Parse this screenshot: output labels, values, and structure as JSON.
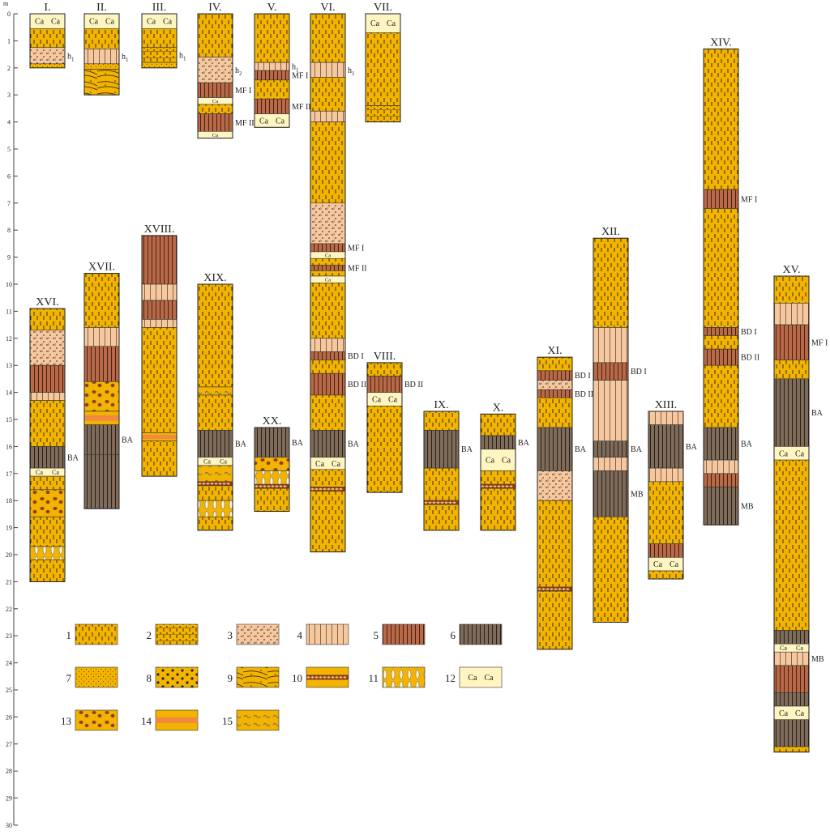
{
  "colors": {
    "loess_yellow": "#F2B400",
    "light_soil": "#F5C8A0",
    "brown_soil": "#B86A48",
    "dark_soil": "#7E6B5A",
    "carbonate_fill": "#FFF5C0",
    "orange_band": "#F08A40",
    "line": "#333333"
  },
  "axis": {
    "unit": "m",
    "ticks": [
      "0",
      "1",
      "2",
      "3",
      "4",
      "5",
      "6",
      "7",
      "8",
      "9",
      "10",
      "11",
      "12",
      "13",
      "14",
      "15",
      "16",
      "17",
      "18",
      "19",
      "20",
      "21",
      "22",
      "23",
      "24",
      "25",
      "26",
      "27",
      "28",
      "29",
      "30"
    ]
  },
  "profiles": [
    {
      "id": "I.",
      "top": 0,
      "bottom": 2.0,
      "layers": [
        {
          "top": 0,
          "bottom": 0.55,
          "type": 12
        },
        {
          "top": 0.55,
          "bottom": 1.25,
          "type": 1
        },
        {
          "top": 1.25,
          "bottom": 1.85,
          "type": 3,
          "label": "h1"
        },
        {
          "top": 1.85,
          "bottom": 2.0,
          "type": 7
        }
      ]
    },
    {
      "id": "II.",
      "top": 0,
      "bottom": 3.0,
      "layers": [
        {
          "top": 0,
          "bottom": 0.55,
          "type": 12
        },
        {
          "top": 0.55,
          "bottom": 1.3,
          "type": 1
        },
        {
          "top": 1.3,
          "bottom": 1.85,
          "type": 4,
          "label": "h1"
        },
        {
          "top": 1.85,
          "bottom": 2.05,
          "type": 7
        },
        {
          "top": 2.05,
          "bottom": 3.0,
          "type": 9
        }
      ]
    },
    {
      "id": "III.",
      "top": 0,
      "bottom": 2.0,
      "layers": [
        {
          "top": 0,
          "bottom": 0.55,
          "type": 12
        },
        {
          "top": 0.55,
          "bottom": 1.25,
          "type": 1
        },
        {
          "top": 1.25,
          "bottom": 1.8,
          "type": 2,
          "label": "h1"
        },
        {
          "top": 1.8,
          "bottom": 2.0,
          "type": 7
        }
      ]
    },
    {
      "id": "IV.",
      "top": 0,
      "bottom": 4.6,
      "layers": [
        {
          "top": 0,
          "bottom": 1.6,
          "type": 1
        },
        {
          "top": 1.6,
          "bottom": 2.55,
          "type": 3,
          "label": "h2"
        },
        {
          "top": 2.55,
          "bottom": 3.1,
          "type": 5,
          "label": "MF I"
        },
        {
          "top": 3.1,
          "bottom": 3.35,
          "type": 12
        },
        {
          "top": 3.35,
          "bottom": 3.7,
          "type": 1
        },
        {
          "top": 3.7,
          "bottom": 4.35,
          "type": 5,
          "label": "MF II"
        },
        {
          "top": 4.35,
          "bottom": 4.6,
          "type": 12
        }
      ]
    },
    {
      "id": "V.",
      "top": 0,
      "bottom": 4.2,
      "layers": [
        {
          "top": 0,
          "bottom": 1.8,
          "type": 1
        },
        {
          "top": 1.8,
          "bottom": 2.1,
          "type": 4,
          "label": "h1"
        },
        {
          "top": 2.1,
          "bottom": 2.45,
          "type": 5,
          "label": "MF I"
        },
        {
          "top": 2.45,
          "bottom": 3.15,
          "type": 1
        },
        {
          "top": 3.15,
          "bottom": 3.7,
          "type": 5,
          "label": "MF II"
        },
        {
          "top": 3.7,
          "bottom": 4.2,
          "type": 12
        }
      ]
    },
    {
      "id": "VI.",
      "top": 0,
      "bottom": 19.9,
      "layers": [
        {
          "top": 0,
          "bottom": 1.8,
          "type": 1
        },
        {
          "top": 1.8,
          "bottom": 2.35,
          "type": 4,
          "label": "h1"
        },
        {
          "top": 2.35,
          "bottom": 3.6,
          "type": 1
        },
        {
          "top": 3.6,
          "bottom": 4.0,
          "type": 4
        },
        {
          "top": 4.0,
          "bottom": 7.0,
          "type": 1
        },
        {
          "top": 7.0,
          "bottom": 8.5,
          "type": 3
        },
        {
          "top": 8.5,
          "bottom": 8.8,
          "type": 5,
          "label": "MF I"
        },
        {
          "top": 8.8,
          "bottom": 9.05,
          "type": 12
        },
        {
          "top": 9.05,
          "bottom": 9.3,
          "type": 1
        },
        {
          "top": 9.3,
          "bottom": 9.5,
          "type": 5,
          "label": "MF II"
        },
        {
          "top": 9.5,
          "bottom": 9.7,
          "type": 1
        },
        {
          "top": 9.7,
          "bottom": 9.95,
          "type": 12
        },
        {
          "top": 9.95,
          "bottom": 12.0,
          "type": 1
        },
        {
          "top": 12.0,
          "bottom": 12.5,
          "type": 4
        },
        {
          "top": 12.5,
          "bottom": 12.8,
          "type": 5,
          "label": "BD I"
        },
        {
          "top": 12.8,
          "bottom": 13.3,
          "type": 1
        },
        {
          "top": 13.3,
          "bottom": 14.1,
          "type": 5,
          "label": "BD II"
        },
        {
          "top": 14.1,
          "bottom": 15.4,
          "type": 1
        },
        {
          "top": 15.4,
          "bottom": 16.4,
          "type": 6,
          "label": "BA"
        },
        {
          "top": 16.4,
          "bottom": 16.85,
          "type": 12
        },
        {
          "top": 16.85,
          "bottom": 17.5,
          "type": 1
        },
        {
          "top": 17.5,
          "bottom": 17.65,
          "type": 10
        },
        {
          "top": 17.65,
          "bottom": 19.9,
          "type": 1
        }
      ]
    },
    {
      "id": "VII.",
      "top": 0,
      "bottom": 4.0,
      "layers": [
        {
          "top": 0,
          "bottom": 0.7,
          "type": 12
        },
        {
          "top": 0.7,
          "bottom": 3.4,
          "type": 1
        },
        {
          "top": 3.4,
          "bottom": 4.0,
          "type": 2
        }
      ]
    },
    {
      "id": "VIII.",
      "top": 12.9,
      "bottom": 17.7,
      "layers": [
        {
          "top": 12.9,
          "bottom": 13.4,
          "type": 1
        },
        {
          "top": 13.4,
          "bottom": 14.0,
          "type": 5,
          "label": "BD II"
        },
        {
          "top": 14.0,
          "bottom": 14.5,
          "type": 12
        },
        {
          "top": 14.5,
          "bottom": 17.7,
          "type": 1
        }
      ]
    },
    {
      "id": "IX.",
      "top": 14.7,
      "bottom": 19.1,
      "layers": [
        {
          "top": 14.7,
          "bottom": 15.4,
          "type": 1
        },
        {
          "top": 15.4,
          "bottom": 16.8,
          "type": 6,
          "label": "BA"
        },
        {
          "top": 16.8,
          "bottom": 18.0,
          "type": 1
        },
        {
          "top": 18.0,
          "bottom": 18.15,
          "type": 10
        },
        {
          "top": 18.15,
          "bottom": 19.1,
          "type": 1
        }
      ]
    },
    {
      "id": "X.",
      "top": 14.8,
      "bottom": 19.1,
      "layers": [
        {
          "top": 14.8,
          "bottom": 15.6,
          "type": 1
        },
        {
          "top": 15.6,
          "bottom": 16.1,
          "type": 6,
          "label": "BA"
        },
        {
          "top": 16.1,
          "bottom": 16.9,
          "type": 12
        },
        {
          "top": 16.9,
          "bottom": 17.4,
          "type": 1
        },
        {
          "top": 17.4,
          "bottom": 17.55,
          "type": 10
        },
        {
          "top": 17.55,
          "bottom": 19.1,
          "type": 1
        }
      ]
    },
    {
      "id": "XI.",
      "top": 12.7,
      "bottom": 23.5,
      "layers": [
        {
          "top": 12.7,
          "bottom": 13.2,
          "type": 1
        },
        {
          "top": 13.2,
          "bottom": 13.55,
          "type": 5,
          "label": "BD I"
        },
        {
          "top": 13.55,
          "bottom": 13.9,
          "type": 3
        },
        {
          "top": 13.9,
          "bottom": 14.2,
          "type": 5,
          "label": "BD II"
        },
        {
          "top": 14.2,
          "bottom": 15.3,
          "type": 1
        },
        {
          "top": 15.3,
          "bottom": 16.9,
          "type": 6,
          "label": "BA"
        },
        {
          "top": 16.9,
          "bottom": 18.0,
          "type": 3
        },
        {
          "top": 18.0,
          "bottom": 21.2,
          "type": 1
        },
        {
          "top": 21.2,
          "bottom": 21.35,
          "type": 10
        },
        {
          "top": 21.35,
          "bottom": 23.5,
          "type": 1
        }
      ]
    },
    {
      "id": "XII.",
      "top": 8.3,
      "bottom": 22.5,
      "layers": [
        {
          "top": 8.3,
          "bottom": 11.6,
          "type": 1
        },
        {
          "top": 11.6,
          "bottom": 12.9,
          "type": 4
        },
        {
          "top": 12.9,
          "bottom": 13.55,
          "type": 5,
          "label": "BD I"
        },
        {
          "top": 13.55,
          "bottom": 15.8,
          "type": 4
        },
        {
          "top": 15.8,
          "bottom": 16.4,
          "type": 6,
          "label": "BA"
        },
        {
          "top": 16.4,
          "bottom": 16.9,
          "type": 4
        },
        {
          "top": 16.9,
          "bottom": 18.6,
          "type": 6,
          "label": "MB"
        },
        {
          "top": 18.6,
          "bottom": 22.5,
          "type": 1
        }
      ]
    },
    {
      "id": "XIII.",
      "top": 14.7,
      "bottom": 20.9,
      "layers": [
        {
          "top": 14.7,
          "bottom": 15.2,
          "type": 4
        },
        {
          "top": 15.2,
          "bottom": 16.8,
          "type": 6,
          "label": "BA"
        },
        {
          "top": 16.8,
          "bottom": 17.3,
          "type": 4
        },
        {
          "top": 17.3,
          "bottom": 19.6,
          "type": 1
        },
        {
          "top": 19.6,
          "bottom": 20.1,
          "type": 5
        },
        {
          "top": 20.1,
          "bottom": 20.6,
          "type": 12
        },
        {
          "top": 20.6,
          "bottom": 20.9,
          "type": 1
        }
      ]
    },
    {
      "id": "XIV.",
      "top": 1.3,
      "bottom": 18.9,
      "layers": [
        {
          "top": 1.3,
          "bottom": 6.5,
          "type": 1
        },
        {
          "top": 6.5,
          "bottom": 7.2,
          "type": 5,
          "label": "MF I"
        },
        {
          "top": 7.2,
          "bottom": 11.6,
          "type": 1
        },
        {
          "top": 11.6,
          "bottom": 11.9,
          "type": 5,
          "label": "BD I"
        },
        {
          "top": 11.9,
          "bottom": 12.4,
          "type": 1
        },
        {
          "top": 12.4,
          "bottom": 13.0,
          "type": 5,
          "label": "BD II"
        },
        {
          "top": 13.0,
          "bottom": 15.3,
          "type": 1
        },
        {
          "top": 15.3,
          "bottom": 16.5,
          "type": 6,
          "label": "BA"
        },
        {
          "top": 16.5,
          "bottom": 17.0,
          "type": 4
        },
        {
          "top": 17.0,
          "bottom": 17.5,
          "type": 5
        },
        {
          "top": 17.5,
          "bottom": 18.9,
          "type": 6,
          "label": "MB"
        }
      ]
    },
    {
      "id": "XV.",
      "top": 9.7,
      "bottom": 27.3,
      "layers": [
        {
          "top": 9.7,
          "bottom": 10.7,
          "type": 1
        },
        {
          "top": 10.7,
          "bottom": 11.5,
          "type": 4
        },
        {
          "top": 11.5,
          "bottom": 12.8,
          "type": 5,
          "label": "MF I"
        },
        {
          "top": 12.8,
          "bottom": 13.5,
          "type": 1
        },
        {
          "top": 13.5,
          "bottom": 16.0,
          "type": 6,
          "label": "BA"
        },
        {
          "top": 16.0,
          "bottom": 16.5,
          "type": 12
        },
        {
          "top": 16.5,
          "bottom": 22.8,
          "type": 1
        },
        {
          "top": 22.8,
          "bottom": 23.3,
          "type": 6
        },
        {
          "top": 23.3,
          "bottom": 23.6,
          "type": 12
        },
        {
          "top": 23.6,
          "bottom": 24.1,
          "type": 4,
          "label": "MB"
        },
        {
          "top": 24.1,
          "bottom": 25.1,
          "type": 5
        },
        {
          "top": 25.1,
          "bottom": 25.6,
          "type": 6
        },
        {
          "top": 25.6,
          "bottom": 26.1,
          "type": 12
        },
        {
          "top": 26.1,
          "bottom": 27.1,
          "type": 6
        },
        {
          "top": 27.1,
          "bottom": 27.3,
          "type": 1
        }
      ]
    },
    {
      "id": "XVI.",
      "top": 10.9,
      "bottom": 21.0,
      "layers": [
        {
          "top": 10.9,
          "bottom": 11.7,
          "type": 1
        },
        {
          "top": 11.7,
          "bottom": 13.0,
          "type": 3
        },
        {
          "top": 13.0,
          "bottom": 14.0,
          "type": 5
        },
        {
          "top": 14.0,
          "bottom": 14.3,
          "type": 4
        },
        {
          "top": 14.3,
          "bottom": 16.0,
          "type": 1
        },
        {
          "top": 16.0,
          "bottom": 16.8,
          "type": 6,
          "label": "BA"
        },
        {
          "top": 16.8,
          "bottom": 17.1,
          "type": 12
        },
        {
          "top": 17.1,
          "bottom": 17.6,
          "type": 1
        },
        {
          "top": 17.6,
          "bottom": 18.6,
          "type": 13
        },
        {
          "top": 18.6,
          "bottom": 19.7,
          "type": 1
        },
        {
          "top": 19.7,
          "bottom": 20.2,
          "type": 11
        },
        {
          "top": 20.2,
          "bottom": 21.0,
          "type": 1
        }
      ]
    },
    {
      "id": "XVII.",
      "top": 9.6,
      "bottom": 18.3,
      "layers": [
        {
          "top": 9.6,
          "bottom": 11.6,
          "type": 1
        },
        {
          "top": 11.6,
          "bottom": 12.3,
          "type": 4
        },
        {
          "top": 12.3,
          "bottom": 13.6,
          "type": 5
        },
        {
          "top": 13.6,
          "bottom": 14.7,
          "type": 13
        },
        {
          "top": 14.7,
          "bottom": 15.2,
          "type": 14
        },
        {
          "top": 15.2,
          "bottom": 16.3,
          "type": 6,
          "label": "BA"
        },
        {
          "top": 16.3,
          "bottom": 18.3,
          "type": 6
        }
      ]
    },
    {
      "id": "XVIII.",
      "top": 8.2,
      "bottom": 17.1,
      "layers": [
        {
          "top": 8.2,
          "bottom": 10.0,
          "type": 5
        },
        {
          "top": 10.0,
          "bottom": 10.6,
          "type": 4
        },
        {
          "top": 10.6,
          "bottom": 11.3,
          "type": 5
        },
        {
          "top": 11.3,
          "bottom": 11.6,
          "type": 4
        },
        {
          "top": 11.6,
          "bottom": 15.5,
          "type": 1
        },
        {
          "top": 15.5,
          "bottom": 15.8,
          "type": 14
        },
        {
          "top": 15.8,
          "bottom": 17.1,
          "type": 1
        }
      ]
    },
    {
      "id": "XIX.",
      "top": 10.0,
      "bottom": 19.1,
      "layers": [
        {
          "top": 10.0,
          "bottom": 13.8,
          "type": 1
        },
        {
          "top": 13.8,
          "bottom": 14.1,
          "type": 15
        },
        {
          "top": 14.1,
          "bottom": 15.4,
          "type": 1
        },
        {
          "top": 15.4,
          "bottom": 16.4,
          "type": 6,
          "label": "BA"
        },
        {
          "top": 16.4,
          "bottom": 16.7,
          "type": 12
        },
        {
          "top": 16.7,
          "bottom": 17.3,
          "type": 15
        },
        {
          "top": 17.3,
          "bottom": 17.45,
          "type": 10
        },
        {
          "top": 17.45,
          "bottom": 18.0,
          "type": 1
        },
        {
          "top": 18.0,
          "bottom": 18.6,
          "type": 11
        },
        {
          "top": 18.6,
          "bottom": 19.1,
          "type": 1
        }
      ]
    },
    {
      "id": "XX.",
      "top": 15.3,
      "bottom": 18.4,
      "layers": [
        {
          "top": 15.3,
          "bottom": 16.4,
          "type": 6,
          "label": "BA"
        },
        {
          "top": 16.4,
          "bottom": 16.9,
          "type": 13
        },
        {
          "top": 16.9,
          "bottom": 17.4,
          "type": 11
        },
        {
          "top": 17.4,
          "bottom": 17.55,
          "type": 10
        },
        {
          "top": 17.55,
          "bottom": 18.4,
          "type": 1
        }
      ]
    }
  ],
  "legend": {
    "items": [
      {
        "num": "1",
        "type": 1
      },
      {
        "num": "2",
        "type": 2
      },
      {
        "num": "3",
        "type": 3
      },
      {
        "num": "4",
        "type": 4
      },
      {
        "num": "5",
        "type": 5
      },
      {
        "num": "6",
        "type": 6
      },
      {
        "num": "7",
        "type": 7
      },
      {
        "num": "8",
        "type": 8
      },
      {
        "num": "9",
        "type": 9
      },
      {
        "num": "10",
        "type": 10
      },
      {
        "num": "11",
        "type": 11
      },
      {
        "num": "12",
        "type": 12
      },
      {
        "num": "13",
        "type": 13
      },
      {
        "num": "14",
        "type": 14
      },
      {
        "num": "15",
        "type": 15
      }
    ],
    "ca_text": "Ca"
  }
}
